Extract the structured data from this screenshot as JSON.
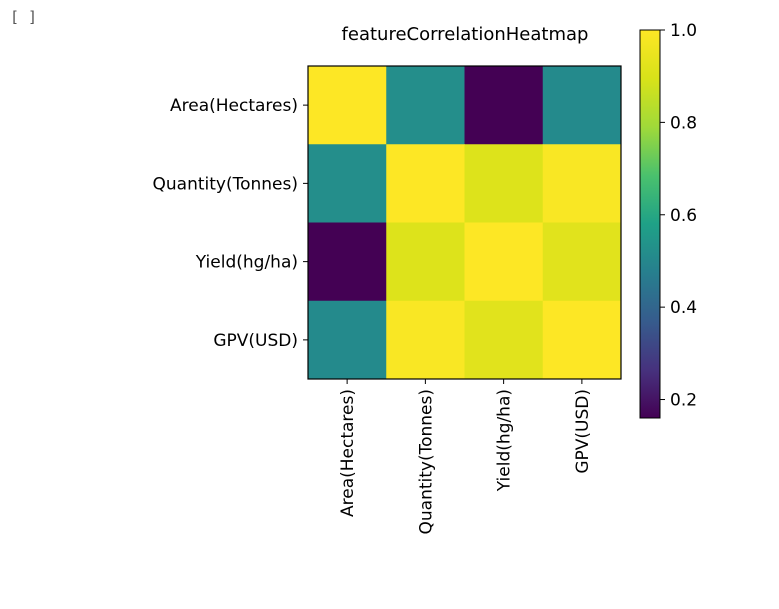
{
  "notebook": {
    "cell_prompt": "[ ]"
  },
  "chart_data": {
    "type": "heatmap",
    "title": "featureCorrelationHeatmap",
    "row_labels": [
      "Area(Hectares)",
      "Quantity(Tonnes)",
      "Yield(hg/ha)",
      "GPV(USD)"
    ],
    "col_labels": [
      "Area(Hectares)",
      "Quantity(Tonnes)",
      "Yield(hg/ha)",
      "GPV(USD)"
    ],
    "values": [
      [
        1.0,
        0.52,
        0.16,
        0.51
      ],
      [
        0.52,
        1.0,
        0.91,
        0.99
      ],
      [
        0.16,
        0.91,
        1.0,
        0.92
      ],
      [
        0.51,
        0.99,
        0.92,
        1.0
      ]
    ],
    "colormap": "viridis",
    "colorbar": {
      "range": [
        0.16,
        1.0
      ],
      "ticks": [
        "0.2",
        "0.4",
        "0.6",
        "0.8",
        "1.0"
      ],
      "tick_values": [
        0.2,
        0.4,
        0.6,
        0.8,
        1.0
      ]
    },
    "grid": false
  }
}
